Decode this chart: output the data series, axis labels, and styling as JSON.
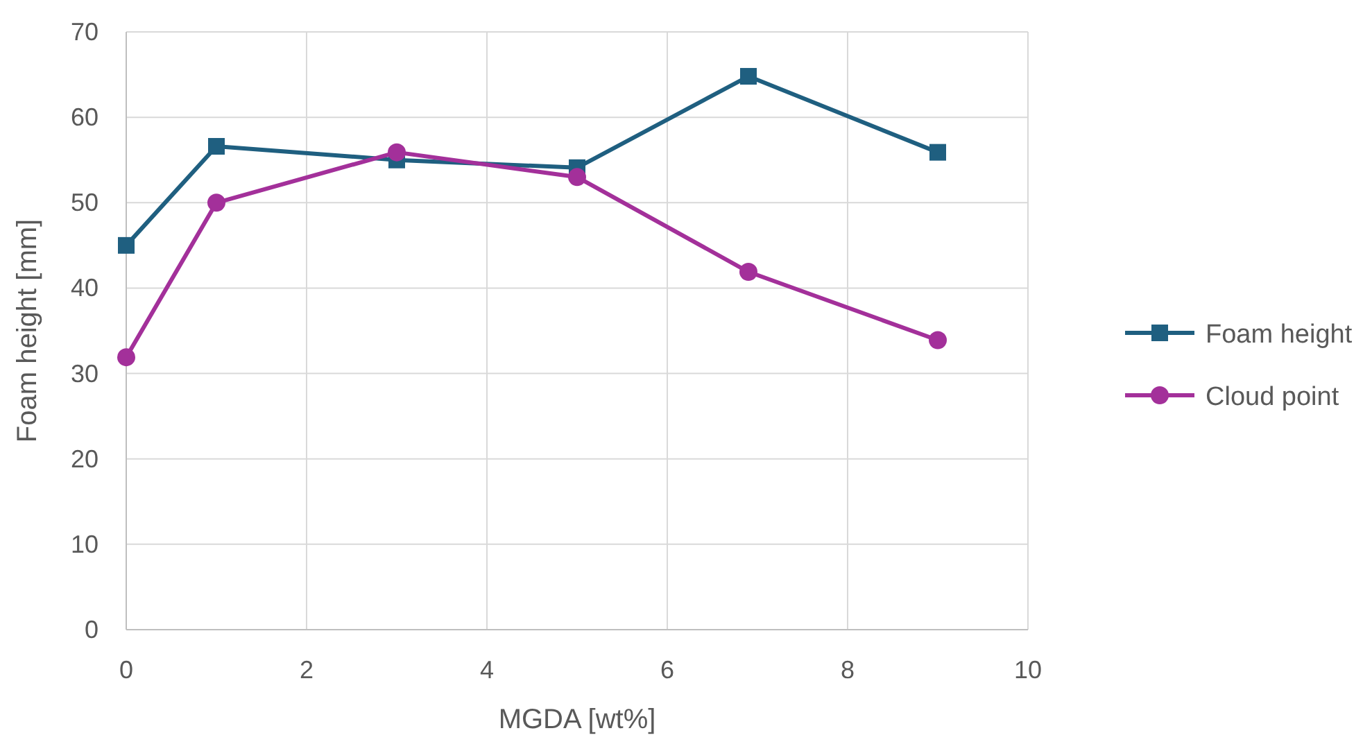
{
  "chart_data": {
    "type": "line",
    "xlabel": "MGDA [wt%]",
    "ylabel": "Foam height [mm]",
    "xlim": [
      0,
      10
    ],
    "xticks": [
      0,
      2,
      4,
      6,
      8,
      10
    ],
    "ylim": [
      0,
      70
    ],
    "yticks": [
      0,
      10,
      20,
      30,
      40,
      50,
      60,
      70
    ],
    "grid": true,
    "legend": "right",
    "line_style": "solid",
    "series": [
      {
        "name": "Foam height",
        "color": "#1f5f80",
        "marker": "square",
        "x": [
          0,
          1,
          3,
          5,
          6.9,
          9
        ],
        "values": [
          45,
          56.6,
          55,
          54.1,
          64.8,
          55.9
        ]
      },
      {
        "name": "Cloud point",
        "color": "#a3309a",
        "marker": "circle",
        "x": [
          0,
          1,
          3,
          5,
          6.9,
          9
        ],
        "values": [
          31.9,
          50,
          55.9,
          53,
          41.9,
          33.9
        ]
      }
    ]
  }
}
